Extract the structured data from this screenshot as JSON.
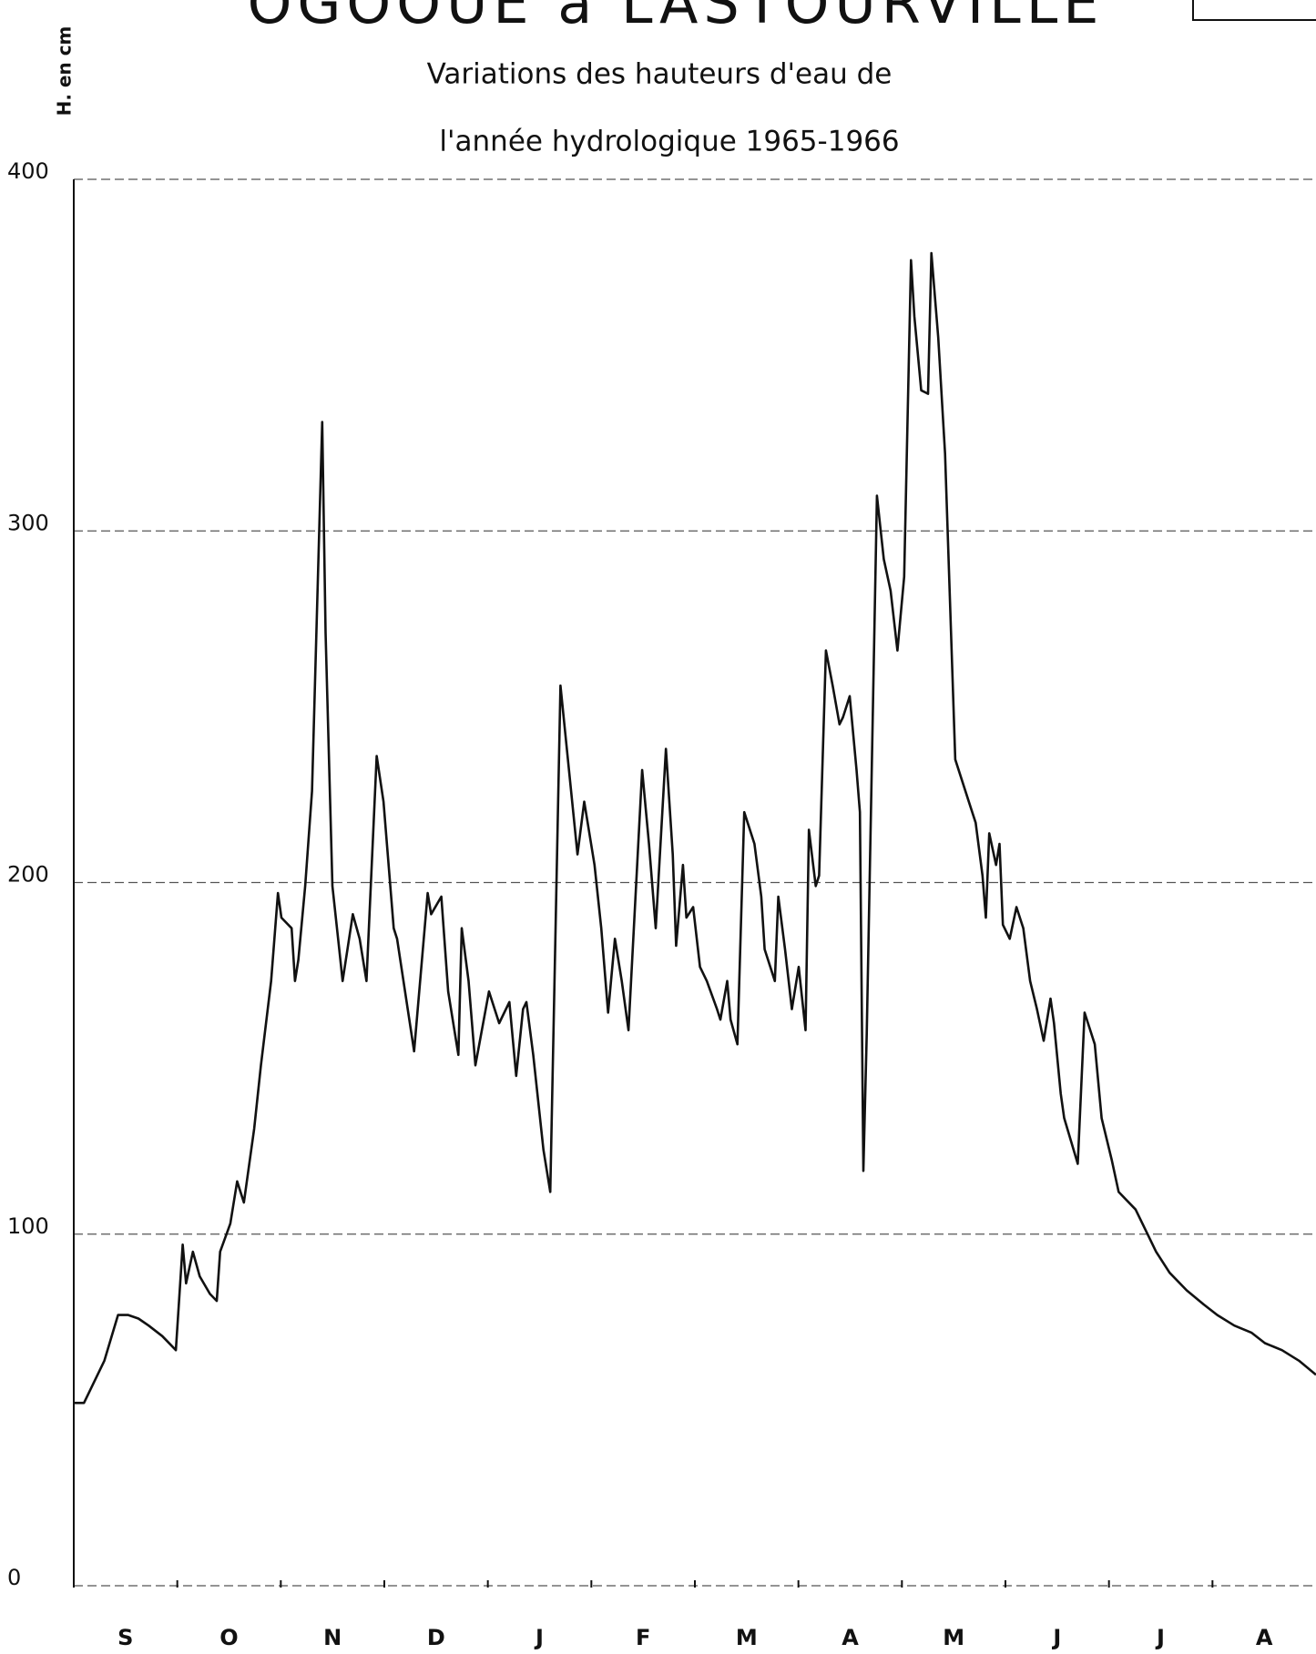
{
  "chart_data": {
    "type": "line",
    "title": "OGOOUE à LASTOURVILLE",
    "subtitle": [
      "Variations des hauteurs d'eau de",
      "l'année hydrologique 1965-1966"
    ],
    "y_label": "H. en cm",
    "categories": [
      "S",
      "O",
      "N",
      "D",
      "J",
      "F",
      "M",
      "A",
      "M",
      "J",
      "J",
      "A"
    ],
    "x": [
      0,
      3,
      9,
      13,
      16,
      19,
      22,
      26,
      30,
      32,
      33,
      35,
      37,
      40,
      42,
      43,
      46,
      48,
      50,
      53,
      55,
      58,
      60,
      61,
      64,
      65,
      66,
      68,
      70,
      73,
      74,
      76,
      78,
      79,
      82,
      84,
      86,
      89,
      91,
      94,
      95,
      100,
      104,
      105,
      108,
      110,
      113,
      114,
      116,
      118,
      122,
      125,
      128,
      130,
      132,
      133,
      135,
      138,
      140,
      143,
      148,
      150,
      153,
      155,
      157,
      159,
      161,
      163,
      167,
      169,
      171,
      174,
      176,
      177,
      179,
      180,
      182,
      184,
      186,
      189,
      190,
      192,
      193,
      195,
      197,
      200,
      202,
      203,
      206,
      207,
      209,
      211,
      213,
      215,
      216,
      218,
      219,
      221,
      223,
      225,
      226,
      228,
      230,
      231,
      232,
      233,
      236,
      238,
      240,
      242,
      244,
      246,
      247,
      249,
      251,
      252,
      254,
      256,
      259,
      263,
      265,
      267,
      268,
      269,
      271,
      272,
      273,
      275,
      277,
      279,
      281,
      283,
      285,
      287,
      288,
      290,
      291,
      295,
      297,
      300,
      302,
      305,
      307,
      312,
      315,
      318,
      322,
      327,
      332,
      336,
      341,
      346,
      350,
      355,
      360,
      365
    ],
    "values": [
      52,
      52,
      64,
      77,
      77,
      76,
      74,
      71,
      67,
      97,
      86,
      95,
      88,
      83,
      81,
      95,
      103,
      115,
      109,
      130,
      148,
      172,
      197,
      190,
      187,
      172,
      178,
      199,
      226,
      331,
      271,
      199,
      181,
      172,
      191,
      184,
      172,
      236,
      223,
      187,
      184,
      152,
      197,
      191,
      196,
      169,
      151,
      187,
      172,
      148,
      169,
      160,
      166,
      145,
      164,
      166,
      151,
      124,
      112,
      256,
      208,
      223,
      205,
      187,
      163,
      184,
      172,
      158,
      232,
      211,
      187,
      238,
      208,
      182,
      205,
      190,
      193,
      176,
      172,
      164,
      161,
      172,
      161,
      154,
      220,
      211,
      196,
      181,
      172,
      196,
      181,
      164,
      176,
      158,
      215,
      199,
      202,
      266,
      256,
      245,
      247,
      253,
      232,
      220,
      118,
      157,
      310,
      292,
      283,
      266,
      287,
      377,
      361,
      340,
      339,
      379,
      355,
      322,
      235,
      223,
      217,
      202,
      190,
      214,
      205,
      211,
      188,
      184,
      193,
      187,
      172,
      164,
      155,
      167,
      160,
      140,
      133,
      120,
      163,
      154,
      133,
      121,
      112,
      107,
      101,
      95,
      89,
      84,
      80,
      77,
      74,
      72,
      69,
      67,
      64,
      60
    ],
    "color": "#111111",
    "xlim": [
      0,
      365
    ],
    "ylim": [
      0,
      400
    ],
    "yticks": [
      0,
      100,
      200,
      300,
      400
    ],
    "grid": true
  }
}
